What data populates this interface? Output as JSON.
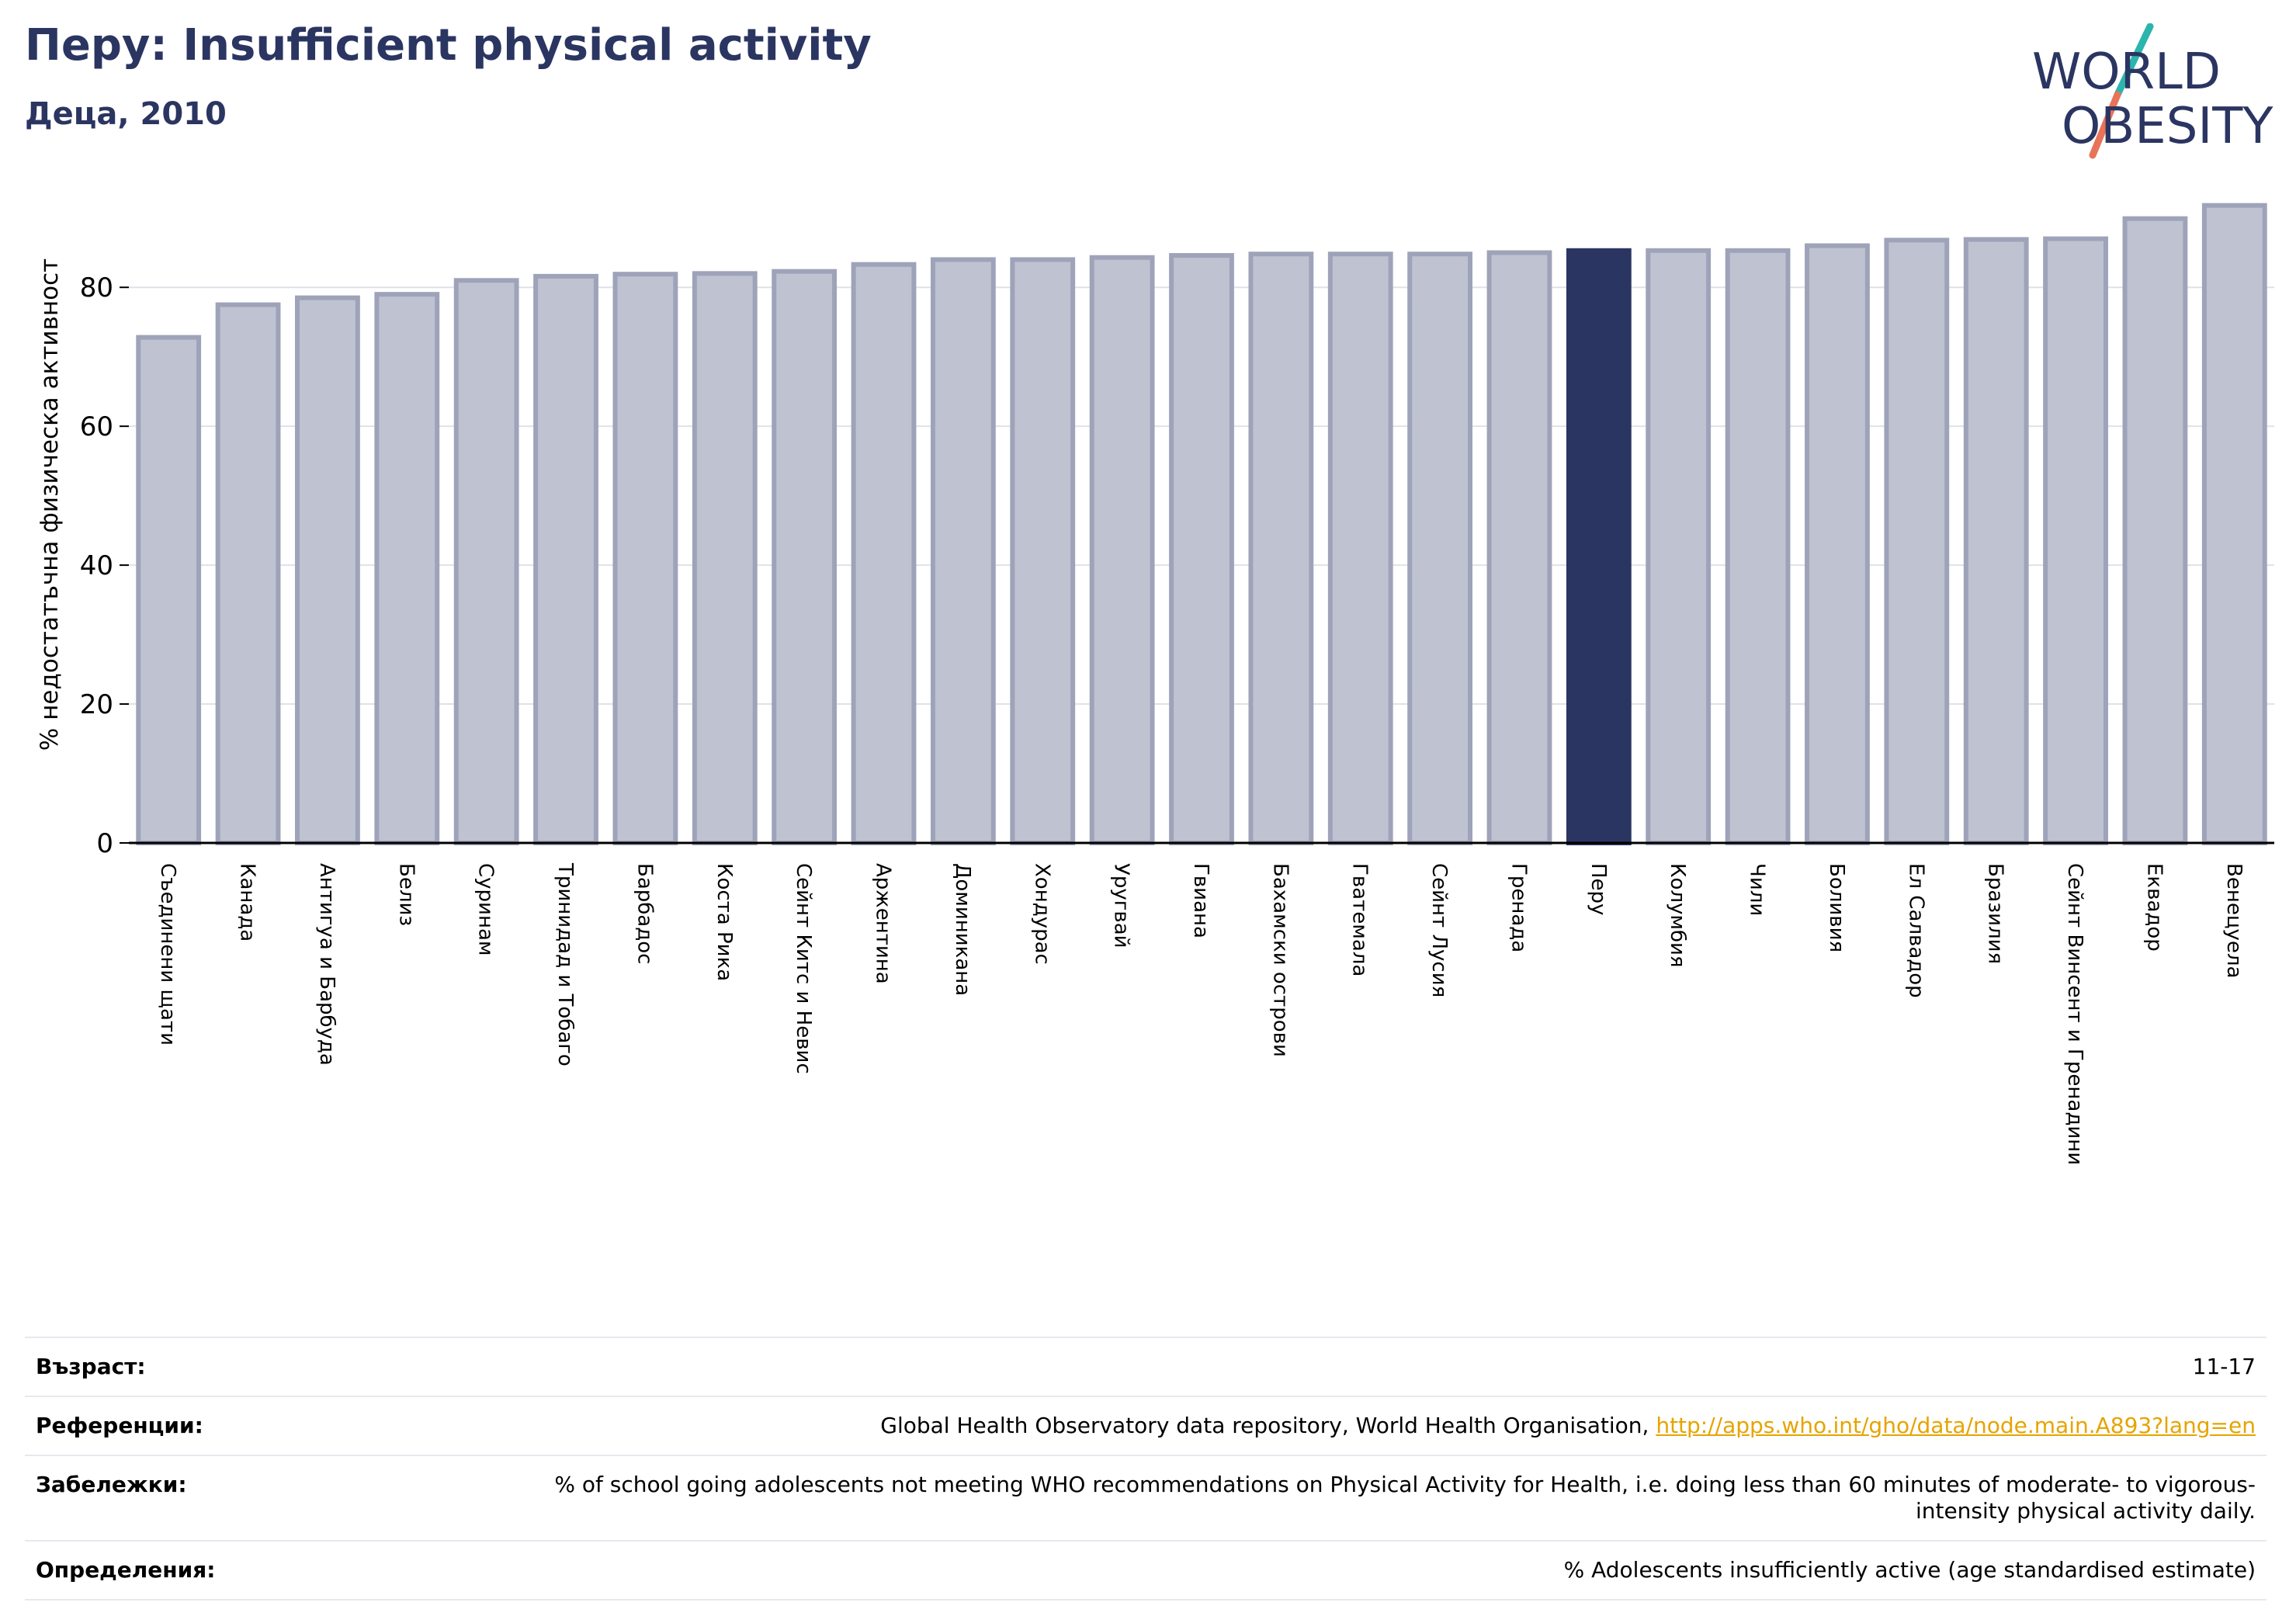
{
  "header": {
    "title": "Перу: Insufficient physical activity",
    "subtitle": "Деца, 2010"
  },
  "logo": {
    "line1": "WORLD",
    "line2": "OBESITY",
    "colors": {
      "text": "#2b3561",
      "teal": "#2bb5ad",
      "coral": "#e8735a"
    }
  },
  "colors": {
    "bar": "#bfc2d0",
    "bar_border": "#9ea3b9",
    "highlight": "#2b3561",
    "axis": "#000000",
    "grid": "#e0e2e8"
  },
  "chart_data": {
    "type": "bar",
    "title": "",
    "ylabel": "% недостатъчна физическа активност",
    "xlabel": "",
    "ylim": [
      0,
      95
    ],
    "yticks": [
      0,
      20,
      40,
      60,
      80
    ],
    "grid": true,
    "highlight": "Перу",
    "categories": [
      "Съединени щати",
      "Канада",
      "Антигуа и Барбуда",
      "Белиз",
      "Суринам",
      "Тринидад и Тобаго",
      "Барбадос",
      "Коста Рика",
      "Сейнт Китс и Невис",
      "Аржентина",
      "Доминикана",
      "Хондурас",
      "Уругвай",
      "Гвиана",
      "Бахамски острови",
      "Гватемала",
      "Сейнт Лусия",
      "Гренада",
      "Перу",
      "Колумбия",
      "Чили",
      "Боливия",
      "Ел Салвадор",
      "Бразилия",
      "Сейнт Винсент и Гренадини",
      "Еквадор",
      "Венецуела"
    ],
    "values": [
      72.8,
      77.5,
      78.5,
      79.0,
      81.0,
      81.6,
      81.9,
      82.0,
      82.3,
      83.3,
      84.0,
      84.0,
      84.3,
      84.6,
      84.8,
      84.8,
      84.8,
      85.0,
      85.3,
      85.3,
      85.3,
      86.0,
      86.8,
      86.9,
      87.0,
      89.9,
      91.8
    ]
  },
  "meta": {
    "rows": [
      {
        "label": "Възраст:",
        "value": "11-17"
      },
      {
        "label": "Референции:",
        "value": "Global Health Observatory data repository, World Health Organisation, ",
        "link": "http://apps.who.int/gho/data/node.main.A893?lang=en"
      },
      {
        "label": "Забележки:",
        "value": "% of school going adolescents not meeting WHO recommendations on Physical Activity for Health, i.e. doing less than 60 minutes of moderate- to vigorous-intensity physical activity daily."
      },
      {
        "label": "Определения:",
        "value": "% Adolescents insufficiently active (age standardised estimate)"
      }
    ]
  }
}
